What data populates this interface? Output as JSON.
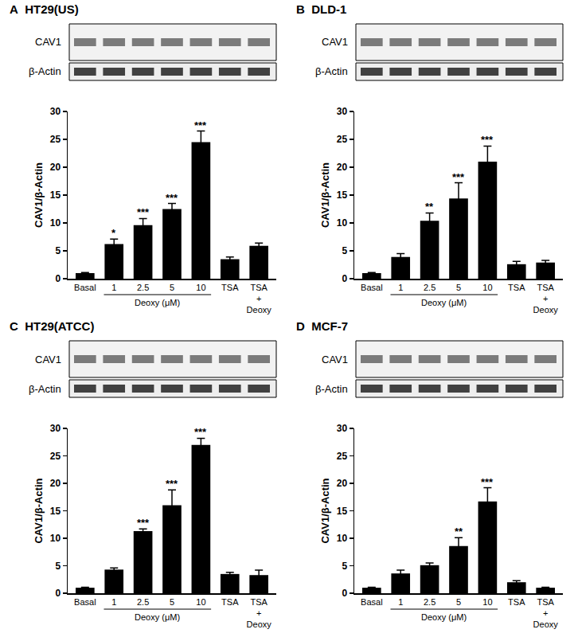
{
  "chart_data": [
    {
      "panel": "A",
      "type": "bar",
      "title": "HT29(US)",
      "categories": [
        "Basal",
        "1",
        "2.5",
        "5",
        "10",
        "TSA",
        "TSA + Deoxy"
      ],
      "values": [
        1.0,
        6.2,
        9.6,
        12.5,
        24.5,
        3.5,
        5.9
      ],
      "errors": [
        0.1,
        0.9,
        1.2,
        1.0,
        2.0,
        0.4,
        0.5
      ],
      "significance": [
        null,
        "*",
        "***",
        "***",
        "***",
        null,
        null
      ],
      "color": "#000000",
      "ylabel": "CAV1/β-Actin",
      "group_label": "Deoxy (μM)",
      "group_categories": [
        "1",
        "10"
      ],
      "blot_labels": [
        "CAV1",
        "β-Actin"
      ],
      "ylim": [
        0,
        30
      ],
      "yticks": [
        0,
        5,
        10,
        15,
        20,
        25,
        30
      ],
      "grid": false
    },
    {
      "panel": "B",
      "type": "bar",
      "title": "DLD-1",
      "categories": [
        "Basal",
        "1",
        "2.5",
        "5",
        "10",
        "TSA",
        "TSA + Deoxy"
      ],
      "values": [
        1.0,
        3.9,
        10.4,
        14.4,
        21.0,
        2.6,
        2.9
      ],
      "errors": [
        0.1,
        0.6,
        1.4,
        2.8,
        2.8,
        0.5,
        0.4
      ],
      "significance": [
        null,
        null,
        "**",
        "***",
        "***",
        null,
        null
      ],
      "color": "#000000",
      "ylabel": "CAV1/β-Actin",
      "group_label": "Deoxy (μM)",
      "group_categories": [
        "1",
        "10"
      ],
      "blot_labels": [
        "CAV1",
        "β-Actin"
      ],
      "ylim": [
        0,
        30
      ],
      "yticks": [
        0,
        5,
        10,
        15,
        20,
        25,
        30
      ],
      "grid": false
    },
    {
      "panel": "C",
      "type": "bar",
      "title": "HT29(ATCC)",
      "categories": [
        "Basal",
        "1",
        "2.5",
        "5",
        "10",
        "TSA",
        "TSA + Deoxy"
      ],
      "values": [
        1.0,
        4.3,
        11.3,
        16.0,
        27.0,
        3.5,
        3.3
      ],
      "errors": [
        0.1,
        0.3,
        0.4,
        2.8,
        1.2,
        0.3,
        0.9
      ],
      "significance": [
        null,
        null,
        "***",
        "***",
        "***",
        null,
        null
      ],
      "color": "#000000",
      "ylabel": "CAV1/β-Actin",
      "group_label": "Deoxy (μM)",
      "group_categories": [
        "1",
        "10"
      ],
      "blot_labels": [
        "CAV1",
        "β-Actin"
      ],
      "ylim": [
        0,
        30
      ],
      "yticks": [
        0,
        5,
        10,
        15,
        20,
        25,
        30
      ],
      "grid": false
    },
    {
      "panel": "D",
      "type": "bar",
      "title": "MCF-7",
      "categories": [
        "Basal",
        "1",
        "2.5",
        "5",
        "10",
        "TSA",
        "TSA + Deoxy"
      ],
      "values": [
        1.0,
        3.6,
        5.1,
        8.6,
        16.7,
        2.0,
        1.0
      ],
      "errors": [
        0.1,
        0.6,
        0.4,
        1.5,
        2.5,
        0.3,
        0.1
      ],
      "significance": [
        null,
        null,
        null,
        "**",
        "***",
        null,
        null
      ],
      "color": "#000000",
      "ylabel": "CAV1/β-Actin",
      "group_label": "Deoxy (μM)",
      "group_categories": [
        "1",
        "10"
      ],
      "blot_labels": [
        "CAV1",
        "β-Actin"
      ],
      "ylim": [
        0,
        30
      ],
      "yticks": [
        0,
        5,
        10,
        15,
        20,
        25,
        30
      ],
      "grid": false
    }
  ]
}
